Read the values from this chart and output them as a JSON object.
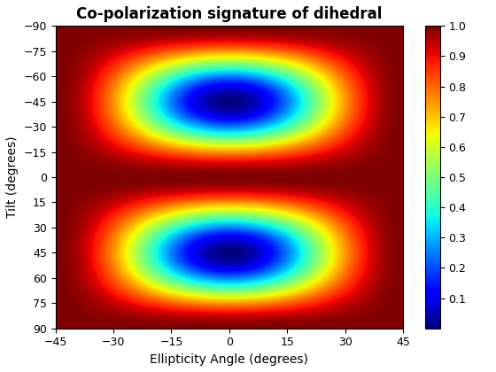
{
  "title": "Co-polarization signature of dihedral",
  "xlabel": "Ellipticity Angle (degrees)",
  "ylabel": "Tilt (degrees)",
  "ellipticity_range": [
    -45,
    45
  ],
  "tilt_range": [
    -90,
    90
  ],
  "colormap": "jet",
  "vmin": 0,
  "vmax": 1,
  "colorbar_ticks": [
    0.1,
    0.2,
    0.3,
    0.4,
    0.5,
    0.6,
    0.7,
    0.8,
    0.9,
    1.0
  ],
  "xticks": [
    -45,
    -30,
    -15,
    0,
    15,
    30,
    45
  ],
  "yticks": [
    -90,
    -75,
    -60,
    -45,
    -30,
    -15,
    0,
    15,
    30,
    45,
    60,
    75,
    90
  ],
  "title_fontsize": 12,
  "label_fontsize": 10,
  "figsize": [
    5.6,
    4.2
  ],
  "dpi": 100
}
